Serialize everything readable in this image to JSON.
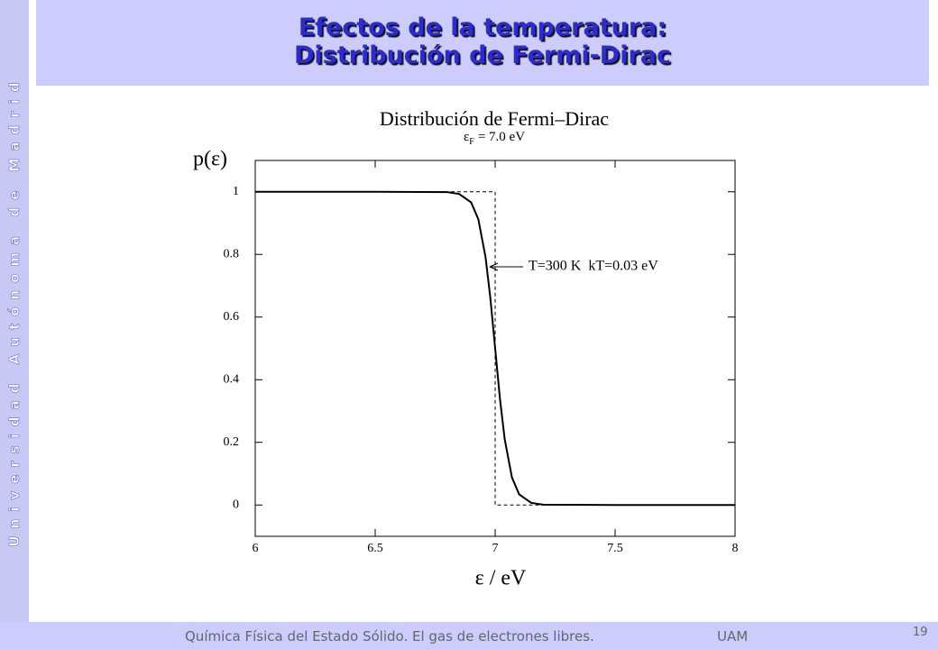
{
  "sidebar": "Universidad Autónoma de Madrid",
  "header": {
    "title_line1": "Efectos de la temperatura:",
    "title_line2": "Distribución de Fermi-Dirac"
  },
  "chart_data": {
    "type": "line",
    "title": "Distribución de Fermi–Dirac",
    "subtitle": {
      "symbol": "ε",
      "subscript": "F",
      "text": "= 7.0 eV"
    },
    "x_label": "ε / eV",
    "y_label": "p(ε)",
    "xlim": [
      6,
      8
    ],
    "ylim": [
      -0.1,
      1.1
    ],
    "xticks": [
      6,
      6.5,
      7,
      7.5,
      8
    ],
    "yticks": [
      0,
      0.2,
      0.4,
      0.6,
      0.8,
      1
    ],
    "series": [
      {
        "name": "T=300 K  kT=0.03 eV",
        "color": "#000000",
        "dashed": false,
        "x": [
          6,
          6.5,
          6.8,
          6.85,
          6.9,
          6.93,
          6.96,
          6.98,
          7,
          7.02,
          7.04,
          7.07,
          7.1,
          7.15,
          7.2,
          7.5,
          8
        ],
        "values": [
          1,
          1,
          0.999,
          0.993,
          0.966,
          0.912,
          0.791,
          0.661,
          0.5,
          0.339,
          0.209,
          0.088,
          0.034,
          0.007,
          0.001,
          0,
          0
        ]
      },
      {
        "color": "#000000",
        "dashed": true,
        "x": [
          6,
          7,
          7,
          8
        ],
        "values": [
          1,
          1,
          0,
          0
        ]
      }
    ]
  },
  "footer": {
    "text": "Química Física del Estado Sólido. El gas de electrones libres.",
    "org": "UAM",
    "page": "19"
  }
}
